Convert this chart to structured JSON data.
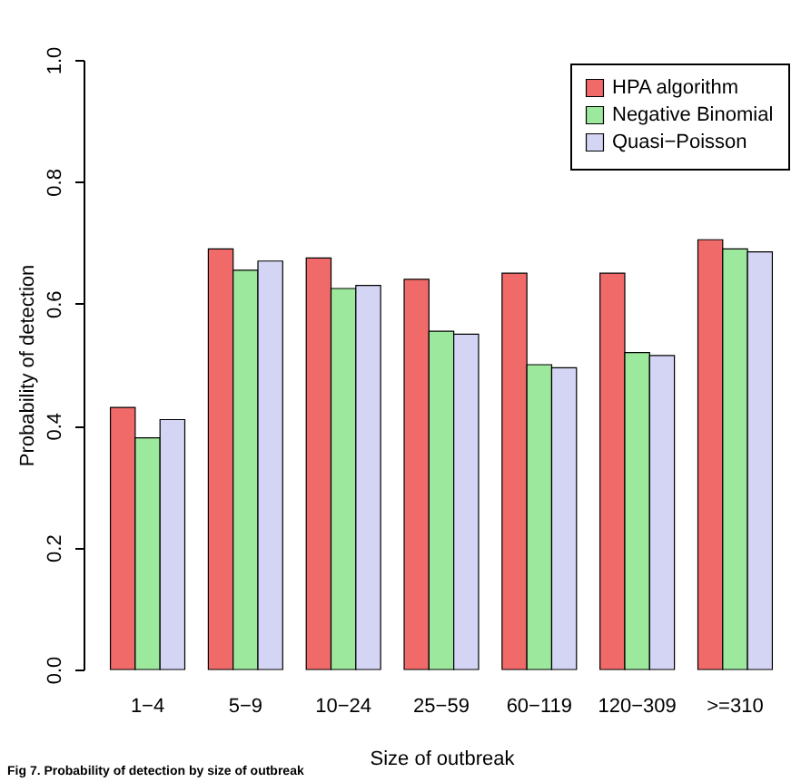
{
  "chart_data": {
    "type": "bar",
    "xlabel": "Size of outbreak",
    "ylabel": "Probability of detection",
    "categories": [
      "1−4",
      "5−9",
      "10−24",
      "25−59",
      "60−119",
      "120−309",
      ">=310"
    ],
    "series": [
      {
        "name": "HPA algorithm",
        "color": "#f06a6a",
        "values": [
          0.43,
          0.69,
          0.675,
          0.64,
          0.65,
          0.65,
          0.705
        ]
      },
      {
        "name": "Negative Binomial",
        "color": "#9ce89c",
        "values": [
          0.38,
          0.655,
          0.625,
          0.555,
          0.5,
          0.52,
          0.69
        ]
      },
      {
        "name": "Quasi−Poisson",
        "color": "#d4d4f4",
        "values": [
          0.41,
          0.67,
          0.63,
          0.55,
          0.495,
          0.515,
          0.685
        ]
      }
    ],
    "ylim": [
      0,
      1
    ],
    "yticks": [
      {
        "value": 0,
        "label": "0.0"
      },
      {
        "value": 0.2,
        "label": "0.2"
      },
      {
        "value": 0.4,
        "label": "0.4"
      },
      {
        "value": 0.6,
        "label": "0.6"
      },
      {
        "value": 0.8,
        "label": "0.8"
      },
      {
        "value": 1,
        "label": "1.0"
      }
    ],
    "grid": false,
    "legend": "top right",
    "annotations": [
      "Fig 7. Probability of detection by size of outbreak"
    ]
  }
}
